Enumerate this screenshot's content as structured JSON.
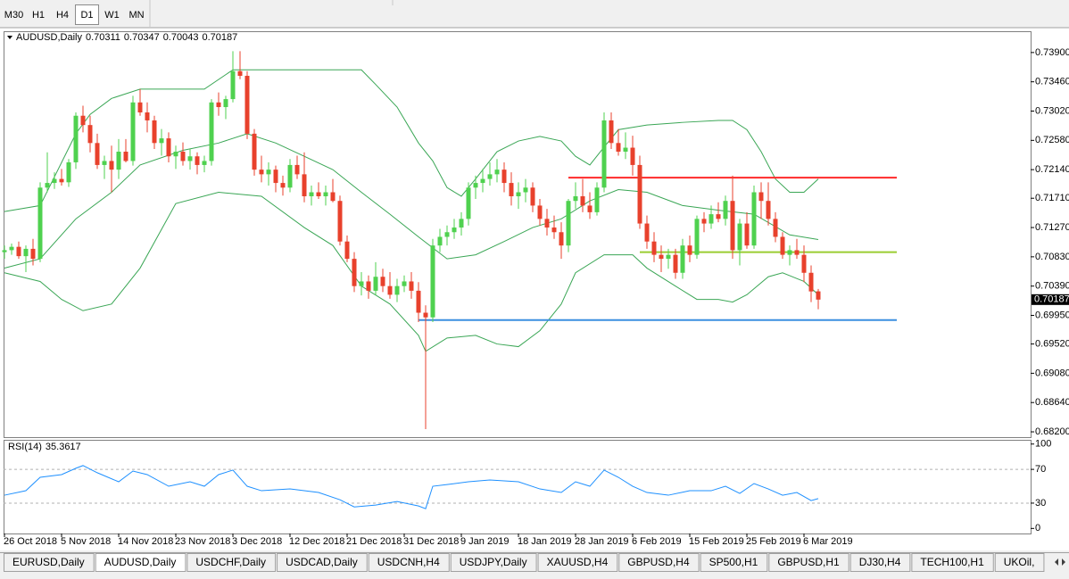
{
  "toolbar": [
    "M30",
    "H1",
    "H4",
    "D1",
    "W1",
    "MN"
  ],
  "tabs": [
    "EURUSD,Daily",
    "AUDUSD,Daily",
    "USDCHF,Daily",
    "USDCAD,Daily",
    "USDCNH,H4",
    "USDJPY,Daily",
    "XAUUSD,H4",
    "GBPUSD,H4",
    "SP500,H1",
    "GBPUSD,H1",
    "DJ30,H4",
    "TECH100,H1",
    "UKOil,"
  ],
  "chart_data": [
    {
      "type": "candlestick",
      "symbol": "AUDUSD,Daily",
      "categories": [
        "26 Oct 2018",
        null,
        null,
        null,
        null,
        null,
        null,
        null,
        "5 Nov 2018",
        null,
        null,
        null,
        null,
        null,
        null,
        null,
        "14 Nov 2018",
        null,
        null,
        null,
        null,
        null,
        null,
        null,
        "23 Nov 2018",
        null,
        null,
        null,
        null,
        null,
        null,
        null,
        "3 Dec 2018",
        null,
        null,
        null,
        null,
        null,
        null,
        null,
        "12 Dec 2018",
        null,
        null,
        null,
        null,
        null,
        null,
        null,
        "21 Dec 2018",
        null,
        null,
        null,
        null,
        null,
        null,
        null,
        "31 Dec 2018",
        null,
        null,
        null,
        null,
        null,
        null,
        null,
        "9 Jan 2019",
        null,
        null,
        null,
        null,
        null,
        null,
        null,
        "18 Jan 2019",
        null,
        null,
        null,
        null,
        null,
        null,
        null,
        "28 Jan 2019",
        null,
        null,
        null,
        null,
        null,
        null,
        null,
        "6 Feb 2019",
        null,
        null,
        null,
        null,
        null,
        null,
        null,
        "15 Feb 2019",
        null,
        null,
        null,
        null,
        null,
        null,
        null,
        "25 Feb 2019",
        null,
        null,
        null,
        null,
        null,
        null,
        null,
        "6 Mar 2019",
        null,
        null
      ],
      "ohlc": [
        [
          0.709,
          0.71,
          0.708,
          0.7093
        ],
        [
          0.7093,
          0.7103,
          0.7086,
          0.7098
        ],
        [
          0.7098,
          0.7106,
          0.708,
          0.7084
        ],
        [
          0.7084,
          0.71,
          0.706,
          0.7095
        ],
        [
          0.7095,
          0.711,
          0.707,
          0.708
        ],
        [
          0.708,
          0.7195,
          0.7075,
          0.7187
        ],
        [
          0.7187,
          0.724,
          0.718,
          0.7194
        ],
        [
          0.7194,
          0.721,
          0.7185,
          0.72
        ],
        [
          0.72,
          0.7215,
          0.719,
          0.7195
        ],
        [
          0.7195,
          0.723,
          0.7188,
          0.7225
        ],
        [
          0.7225,
          0.73,
          0.7215,
          0.7295
        ],
        [
          0.7295,
          0.731,
          0.727,
          0.7281
        ],
        [
          0.7281,
          0.7295,
          0.724,
          0.7254
        ],
        [
          0.7254,
          0.7268,
          0.7215,
          0.7221
        ],
        [
          0.7221,
          0.7235,
          0.72,
          0.7227
        ],
        [
          0.7227,
          0.725,
          0.718,
          0.7214
        ],
        [
          0.7214,
          0.726,
          0.72,
          0.7241
        ],
        [
          0.7241,
          0.726,
          0.7225,
          0.7227
        ],
        [
          0.7227,
          0.7325,
          0.722,
          0.7315
        ],
        [
          0.7315,
          0.7335,
          0.7295,
          0.73
        ],
        [
          0.73,
          0.7315,
          0.727,
          0.7288
        ],
        [
          0.7288,
          0.7295,
          0.7245,
          0.7254
        ],
        [
          0.7254,
          0.7275,
          0.7235,
          0.7261
        ],
        [
          0.7261,
          0.727,
          0.7225,
          0.7234
        ],
        [
          0.7234,
          0.725,
          0.7215,
          0.7241
        ],
        [
          0.7241,
          0.7255,
          0.722,
          0.7227
        ],
        [
          0.7227,
          0.7245,
          0.7214,
          0.7234
        ],
        [
          0.7234,
          0.724,
          0.7207,
          0.7221
        ],
        [
          0.7221,
          0.7235,
          0.721,
          0.7227
        ],
        [
          0.7227,
          0.732,
          0.722,
          0.7315
        ],
        [
          0.7315,
          0.733,
          0.7295,
          0.7308
        ],
        [
          0.7308,
          0.7325,
          0.729,
          0.732
        ],
        [
          0.732,
          0.7392,
          0.7315,
          0.7362
        ],
        [
          0.7362,
          0.7392,
          0.735,
          0.7355
        ],
        [
          0.7355,
          0.7362,
          0.726,
          0.7268
        ],
        [
          0.7268,
          0.7275,
          0.7205,
          0.7214
        ],
        [
          0.7214,
          0.7235,
          0.7195,
          0.7207
        ],
        [
          0.7207,
          0.7225,
          0.719,
          0.7214
        ],
        [
          0.7214,
          0.722,
          0.718,
          0.7194
        ],
        [
          0.7194,
          0.7205,
          0.7175,
          0.7187
        ],
        [
          0.7187,
          0.723,
          0.718,
          0.7221
        ],
        [
          0.7221,
          0.7235,
          0.72,
          0.7207
        ],
        [
          0.7207,
          0.724,
          0.7165,
          0.7174
        ],
        [
          0.7174,
          0.719,
          0.716,
          0.718
        ],
        [
          0.718,
          0.7195,
          0.717,
          0.7174
        ],
        [
          0.7174,
          0.719,
          0.716,
          0.718
        ],
        [
          0.718,
          0.72,
          0.7165,
          0.7167
        ],
        [
          0.7167,
          0.7175,
          0.71,
          0.7106
        ],
        [
          0.7106,
          0.7115,
          0.7075,
          0.708
        ],
        [
          0.708,
          0.709,
          0.703,
          0.7039
        ],
        [
          0.7039,
          0.706,
          0.7025,
          0.7046
        ],
        [
          0.7046,
          0.7055,
          0.702,
          0.7032
        ],
        [
          0.7032,
          0.7075,
          0.7025,
          0.7053
        ],
        [
          0.7053,
          0.7065,
          0.703,
          0.7039
        ],
        [
          0.7039,
          0.706,
          0.702,
          0.7026
        ],
        [
          0.7026,
          0.705,
          0.7015,
          0.7039
        ],
        [
          0.7039,
          0.7055,
          0.703,
          0.7046
        ],
        [
          0.7046,
          0.706,
          0.702,
          0.7032
        ],
        [
          0.7032,
          0.7045,
          0.6985,
          0.6999
        ],
        [
          0.6999,
          0.701,
          0.6824,
          0.6992
        ],
        [
          0.6992,
          0.711,
          0.6985,
          0.71
        ],
        [
          0.71,
          0.7125,
          0.709,
          0.7113
        ],
        [
          0.7113,
          0.713,
          0.71,
          0.712
        ],
        [
          0.712,
          0.714,
          0.711,
          0.7127
        ],
        [
          0.7127,
          0.715,
          0.7115,
          0.714
        ],
        [
          0.714,
          0.7195,
          0.713,
          0.7187
        ],
        [
          0.7187,
          0.7205,
          0.717,
          0.7194
        ],
        [
          0.7194,
          0.7215,
          0.718,
          0.72
        ],
        [
          0.72,
          0.7225,
          0.719,
          0.7207
        ],
        [
          0.7207,
          0.723,
          0.7195,
          0.7214
        ],
        [
          0.7214,
          0.7225,
          0.718,
          0.7194
        ],
        [
          0.7194,
          0.721,
          0.716,
          0.7174
        ],
        [
          0.7174,
          0.7195,
          0.7155,
          0.718
        ],
        [
          0.718,
          0.72,
          0.7165,
          0.7187
        ],
        [
          0.7187,
          0.7195,
          0.715,
          0.716
        ],
        [
          0.716,
          0.717,
          0.713,
          0.714
        ],
        [
          0.714,
          0.7155,
          0.7115,
          0.7127
        ],
        [
          0.7127,
          0.7145,
          0.711,
          0.712
        ],
        [
          0.712,
          0.7135,
          0.708,
          0.71
        ],
        [
          0.71,
          0.717,
          0.709,
          0.7167
        ],
        [
          0.7167,
          0.7195,
          0.7155,
          0.7174
        ],
        [
          0.7174,
          0.72,
          0.715,
          0.716
        ],
        [
          0.716,
          0.718,
          0.714,
          0.715
        ],
        [
          0.715,
          0.7195,
          0.7145,
          0.7187
        ],
        [
          0.7187,
          0.73,
          0.718,
          0.7288
        ],
        [
          0.7288,
          0.73,
          0.7245,
          0.7254
        ],
        [
          0.7254,
          0.7275,
          0.7235,
          0.7241
        ],
        [
          0.7241,
          0.727,
          0.723,
          0.7247
        ],
        [
          0.7247,
          0.7265,
          0.7205,
          0.7221
        ],
        [
          0.7221,
          0.7235,
          0.7125,
          0.7133
        ],
        [
          0.7133,
          0.7145,
          0.7095,
          0.7106
        ],
        [
          0.7106,
          0.712,
          0.7075,
          0.7086
        ],
        [
          0.7086,
          0.71,
          0.706,
          0.708
        ],
        [
          0.708,
          0.7095,
          0.7065,
          0.7086
        ],
        [
          0.7086,
          0.7095,
          0.705,
          0.7059
        ],
        [
          0.7059,
          0.711,
          0.705,
          0.71
        ],
        [
          0.71,
          0.7115,
          0.7075,
          0.7086
        ],
        [
          0.7086,
          0.7145,
          0.708,
          0.714
        ],
        [
          0.714,
          0.715,
          0.712,
          0.7133
        ],
        [
          0.7133,
          0.716,
          0.7125,
          0.7147
        ],
        [
          0.7147,
          0.7165,
          0.7135,
          0.714
        ],
        [
          0.714,
          0.7175,
          0.713,
          0.7167
        ],
        [
          0.7167,
          0.7205,
          0.708,
          0.7093
        ],
        [
          0.7093,
          0.714,
          0.707,
          0.7133
        ],
        [
          0.7133,
          0.715,
          0.7095,
          0.71
        ],
        [
          0.71,
          0.719,
          0.7095,
          0.718
        ],
        [
          0.718,
          0.7195,
          0.714,
          0.7167
        ],
        [
          0.7167,
          0.7195,
          0.713,
          0.714
        ],
        [
          0.714,
          0.715,
          0.7105,
          0.7113
        ],
        [
          0.7113,
          0.712,
          0.708,
          0.7086
        ],
        [
          0.7086,
          0.71,
          0.707,
          0.7093
        ],
        [
          0.7093,
          0.711,
          0.708,
          0.7086
        ],
        [
          0.7086,
          0.71,
          0.7045,
          0.7059
        ],
        [
          0.7059,
          0.707,
          0.7015,
          0.7031
        ],
        [
          0.70311,
          0.70347,
          0.70043,
          0.70187
        ]
      ],
      "up_color": "#4fd14f",
      "down_color": "#e8412c",
      "bands": [
        {
          "color": "#3aa655",
          "x": [
            0,
            5,
            10,
            12,
            15,
            19,
            23,
            28,
            32,
            40,
            50,
            52,
            55,
            58,
            60,
            62,
            64,
            66,
            69,
            72,
            75,
            78,
            80,
            82,
            84,
            86,
            90,
            95,
            100,
            102,
            104,
            106,
            108,
            110,
            112,
            114
          ],
          "values": [
            0.7151,
            0.716,
            0.7268,
            0.7297,
            0.7321,
            0.7335,
            0.7335,
            0.7335,
            0.7364,
            0.7364,
            0.7364,
            0.7342,
            0.7308,
            0.7254,
            0.7227,
            0.7187,
            0.7174,
            0.72,
            0.7241,
            0.7257,
            0.7264,
            0.7257,
            0.7234,
            0.7221,
            0.7248,
            0.7274,
            0.7281,
            0.7285,
            0.7288,
            0.7288,
            0.7274,
            0.7241,
            0.72,
            0.718,
            0.718,
            0.72
          ]
        },
        {
          "color": "#3aa655",
          "x": [
            0,
            5,
            10,
            15,
            19,
            25,
            30,
            34,
            38,
            42,
            46,
            50,
            54,
            58,
            62,
            66,
            70,
            74,
            78,
            82,
            86,
            90,
            95,
            100,
            105,
            110,
            114
          ],
          "values": [
            0.7066,
            0.708,
            0.714,
            0.718,
            0.7221,
            0.7243,
            0.7254,
            0.7268,
            0.7254,
            0.7234,
            0.7214,
            0.718,
            0.7147,
            0.7113,
            0.708,
            0.7086,
            0.7106,
            0.7127,
            0.714,
            0.7167,
            0.7184,
            0.718,
            0.716,
            0.7153,
            0.7147,
            0.7116,
            0.7109
          ]
        },
        {
          "color": "#3aa655",
          "x": [
            0,
            5,
            8,
            11,
            15,
            19,
            24,
            30,
            36,
            42,
            46,
            50,
            54,
            58,
            59,
            62,
            66,
            69,
            72,
            75,
            78,
            80,
            84,
            88,
            90,
            94,
            97,
            100,
            102,
            104,
            107,
            109,
            112,
            114
          ],
          "values": [
            0.7059,
            0.7046,
            0.7019,
            0.7002,
            0.7012,
            0.7066,
            0.7163,
            0.718,
            0.7174,
            0.7127,
            0.71,
            0.7039,
            0.7012,
            0.6965,
            0.6941,
            0.6961,
            0.6965,
            0.6952,
            0.6948,
            0.6972,
            0.7012,
            0.7059,
            0.7086,
            0.7086,
            0.7066,
            0.7039,
            0.7019,
            0.7019,
            0.7015,
            0.7026,
            0.7053,
            0.7059,
            0.7046,
            0.7026
          ]
        }
      ],
      "hlines": [
        {
          "value": 0.7202,
          "color": "#ff2a2a",
          "from": 79,
          "to": 125
        },
        {
          "value": 0.709,
          "color": "#9acd32",
          "from": 89,
          "to": 125
        },
        {
          "value": 0.6988,
          "color": "#3b8fe0",
          "from": 58,
          "to": 125
        }
      ],
      "ylim": [
        0.6812,
        0.7422
      ],
      "yticks": [
        {
          "value": 0.739,
          "label": "0.73900"
        },
        {
          "value": 0.7346,
          "label": "0.73460"
        },
        {
          "value": 0.7302,
          "label": "0.73020"
        },
        {
          "value": 0.7258,
          "label": "0.72580"
        },
        {
          "value": 0.7214,
          "label": "0.72140"
        },
        {
          "value": 0.7171,
          "label": "0.71710"
        },
        {
          "value": 0.7127,
          "label": "0.71270"
        },
        {
          "value": 0.7083,
          "label": "0.70830"
        },
        {
          "value": 0.7039,
          "label": "0.70390"
        },
        {
          "value": 0.6995,
          "label": "0.69950"
        },
        {
          "value": 0.6952,
          "label": "0.69520"
        },
        {
          "value": 0.6908,
          "label": "0.69080"
        },
        {
          "value": 0.6864,
          "label": "0.68640"
        },
        {
          "value": 0.682,
          "label": "0.68200"
        }
      ]
    },
    {
      "type": "line",
      "title": "RSI(14)",
      "color": "#1e90ff",
      "x": [
        0,
        3,
        5,
        8,
        10,
        11,
        13,
        16,
        18,
        20,
        23,
        26,
        28,
        30,
        32,
        34,
        36,
        40,
        44,
        47,
        49,
        52,
        55,
        58,
        59,
        60,
        62,
        65,
        68,
        72,
        75,
        78,
        80,
        82,
        84,
        86,
        88,
        90,
        93,
        96,
        99,
        101,
        103,
        105,
        107,
        109,
        111,
        113,
        114
      ],
      "values": [
        39.4,
        44.7,
        60.6,
        63.8,
        71.3,
        74.5,
        66,
        55.3,
        68,
        63.8,
        50,
        55.3,
        50,
        63.8,
        69.1,
        50,
        44.7,
        46.8,
        42.6,
        34,
        25.5,
        27.7,
        31.9,
        26.6,
        23.4,
        50,
        52,
        55.3,
        57.4,
        55.3,
        46.8,
        42.6,
        55.3,
        50,
        69.1,
        60.6,
        50,
        42.6,
        39.4,
        44.7,
        44.7,
        50,
        41.5,
        53.2,
        46.8,
        39.4,
        42.6,
        33,
        35.3617
      ],
      "ylim": [
        -6,
        105
      ],
      "yticks": [
        100,
        70,
        30,
        0
      ],
      "levels": [
        70,
        30
      ]
    }
  ]
}
